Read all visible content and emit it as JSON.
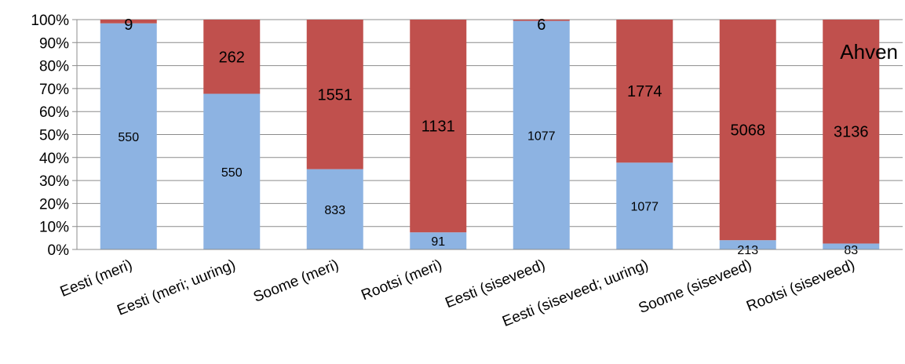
{
  "chart_data": {
    "type": "bar",
    "stacked": true,
    "normalized": true,
    "title": "Ahven",
    "categories": [
      "Eesti (meri)",
      "Eesti (meri; uuring)",
      "Soome (meri)",
      "Rootsi (meri)",
      "Eesti (siseveed)",
      "Eesti (siseveed; uuring)",
      "Soome (siseveed)",
      "Rootsi (siseveed)"
    ],
    "series": [
      {
        "color": "#8db3e2",
        "values": [
          550,
          550,
          833,
          91,
          1077,
          1077,
          213,
          83
        ]
      },
      {
        "color": "#c0504d",
        "values": [
          9,
          262,
          1551,
          1131,
          6,
          1774,
          5068,
          3136
        ]
      }
    ],
    "y_tick_labels": [
      "0%",
      "10%",
      "20%",
      "30%",
      "40%",
      "50%",
      "60%",
      "70%",
      "80%",
      "90%",
      "100%"
    ],
    "ylim": [
      0,
      100
    ],
    "grid": true,
    "legend": "none",
    "title_position": "top-right"
  }
}
